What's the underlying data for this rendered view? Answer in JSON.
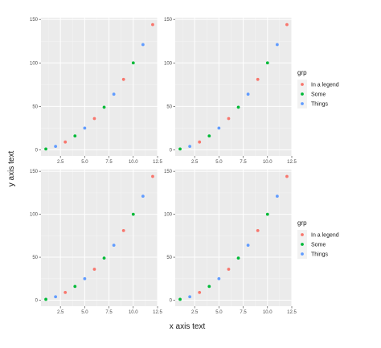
{
  "chart_data": [
    {
      "type": "scatter",
      "panel": "top-left",
      "xlim": [
        0.5,
        12.5
      ],
      "ylim": [
        -7,
        152
      ],
      "x_ticks": [
        2.5,
        5.0,
        7.5,
        10.0,
        12.5
      ],
      "x_tick_labels": [
        "2.5",
        "5.0",
        "7.5",
        "10.0",
        "12.5"
      ],
      "y_ticks": [
        0,
        50,
        100,
        150
      ],
      "y_tick_labels": [
        "0",
        "50",
        "100",
        "150"
      ],
      "grid": true,
      "series": [
        {
          "name": "In a legend",
          "x": [
            3,
            6,
            9,
            12
          ],
          "y": [
            9,
            36,
            81,
            144
          ]
        },
        {
          "name": "Some",
          "x": [
            1,
            4,
            7,
            10
          ],
          "y": [
            1,
            16,
            49,
            100
          ]
        },
        {
          "name": "Things",
          "x": [
            2,
            5,
            8,
            11
          ],
          "y": [
            4,
            25,
            64,
            121
          ]
        }
      ]
    },
    {
      "type": "scatter",
      "panel": "top-right",
      "xlim": [
        0.5,
        12.5
      ],
      "ylim": [
        -7,
        152
      ],
      "x_ticks": [
        2.5,
        5.0,
        7.5,
        10.0,
        12.5
      ],
      "x_tick_labels": [
        "2.5",
        "5.0",
        "7.5",
        "10.0",
        "12.5"
      ],
      "y_ticks": [
        0,
        50,
        100,
        150
      ],
      "y_tick_labels": [
        "0",
        "50",
        "100",
        "150"
      ],
      "grid": true,
      "series": [
        {
          "name": "In a legend",
          "x": [
            3,
            6,
            9,
            12
          ],
          "y": [
            9,
            36,
            81,
            144
          ]
        },
        {
          "name": "Some",
          "x": [
            1,
            4,
            7,
            10
          ],
          "y": [
            1,
            16,
            49,
            100
          ]
        },
        {
          "name": "Things",
          "x": [
            2,
            5,
            8,
            11
          ],
          "y": [
            4,
            25,
            64,
            121
          ]
        }
      ]
    },
    {
      "type": "scatter",
      "panel": "bottom-left",
      "xlim": [
        0.5,
        12.5
      ],
      "ylim": [
        -7,
        152
      ],
      "x_ticks": [
        2.5,
        5.0,
        7.5,
        10.0,
        12.5
      ],
      "x_tick_labels": [
        "2.5",
        "5.0",
        "7.5",
        "10.0",
        "12.5"
      ],
      "y_ticks": [
        0,
        50,
        100,
        150
      ],
      "y_tick_labels": [
        "0",
        "50",
        "100",
        "150"
      ],
      "grid": true,
      "series": [
        {
          "name": "In a legend",
          "x": [
            3,
            6,
            9,
            12
          ],
          "y": [
            9,
            36,
            81,
            144
          ]
        },
        {
          "name": "Some",
          "x": [
            1,
            4,
            7,
            10
          ],
          "y": [
            1,
            16,
            49,
            100
          ]
        },
        {
          "name": "Things",
          "x": [
            2,
            5,
            8,
            11
          ],
          "y": [
            4,
            25,
            64,
            121
          ]
        }
      ]
    },
    {
      "type": "scatter",
      "panel": "bottom-right",
      "xlim": [
        0.5,
        12.5
      ],
      "ylim": [
        -7,
        152
      ],
      "x_ticks": [
        2.5,
        5.0,
        7.5,
        10.0,
        12.5
      ],
      "x_tick_labels": [
        "2.5",
        "5.0",
        "7.5",
        "10.0",
        "12.5"
      ],
      "y_ticks": [
        0,
        50,
        100,
        150
      ],
      "y_tick_labels": [
        "0",
        "50",
        "100",
        "150"
      ],
      "grid": true,
      "series": [
        {
          "name": "In a legend",
          "x": [
            3,
            6,
            9,
            12
          ],
          "y": [
            9,
            36,
            81,
            144
          ]
        },
        {
          "name": "Some",
          "x": [
            1,
            4,
            7,
            10
          ],
          "y": [
            1,
            16,
            49,
            100
          ]
        },
        {
          "name": "Things",
          "x": [
            2,
            5,
            8,
            11
          ],
          "y": [
            4,
            25,
            64,
            121
          ]
        }
      ]
    }
  ],
  "xlabel": "x axis text",
  "ylabel": "y axis text",
  "legends": [
    {
      "position": "right-top",
      "title": "grp",
      "items": [
        {
          "label": "In a legend",
          "color": "#F8766D"
        },
        {
          "label": "Some",
          "color": "#00BA38"
        },
        {
          "label": "Things",
          "color": "#619CFF"
        }
      ]
    },
    {
      "position": "right-bottom",
      "title": "grp",
      "items": [
        {
          "label": "In a legend",
          "color": "#F8766D"
        },
        {
          "label": "Some",
          "color": "#00BA38"
        },
        {
          "label": "Things",
          "color": "#619CFF"
        }
      ]
    }
  ],
  "colors": {
    "panel_background": "#EBEBEB",
    "major_grid": "#FFFFFF",
    "minor_grid": "#F5F5F5",
    "legend_key_background": "#F2F2F2",
    "tick_text": "#4D4D4D"
  }
}
